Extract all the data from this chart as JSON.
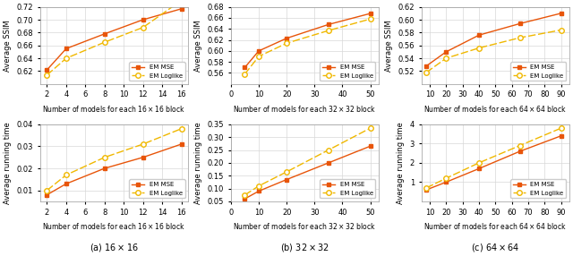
{
  "subplot_titles": [
    "(a) $16\\times 16$",
    "(b) $32\\times 32$",
    "(c) $64\\times 64$"
  ],
  "col1": {
    "ssim_x": [
      2,
      4,
      8,
      12,
      16
    ],
    "ssim_mse": [
      0.622,
      0.655,
      0.678,
      0.7,
      0.717
    ],
    "ssim_log": [
      0.614,
      0.64,
      0.665,
      0.688,
      0.73
    ],
    "ssim_ylim": [
      0.6,
      0.72
    ],
    "ssim_yticks": [
      0.62,
      0.64,
      0.66,
      0.68,
      0.7,
      0.72
    ],
    "ssim_xlabel": "Number of models for each $16\\times 16$ block",
    "ssim_xticks": [
      2,
      4,
      6,
      8,
      10,
      12,
      14,
      16
    ],
    "ssim_xlim": [
      1.3,
      16.7
    ],
    "time_x": [
      2,
      4,
      8,
      12,
      16
    ],
    "time_mse": [
      0.008,
      0.013,
      0.02,
      0.025,
      0.031
    ],
    "time_log": [
      0.01,
      0.017,
      0.025,
      0.031,
      0.038
    ],
    "time_ylim": [
      0.005,
      0.04
    ],
    "time_yticks": [
      0.01,
      0.02,
      0.03,
      0.04
    ],
    "time_xlabel": "Number of models for each $16\\times 16$ block",
    "time_xticks": [
      2,
      4,
      6,
      8,
      10,
      12,
      14,
      16
    ],
    "time_xlim": [
      1.3,
      16.7
    ]
  },
  "col2": {
    "ssim_x": [
      5,
      10,
      20,
      35,
      50
    ],
    "ssim_mse": [
      0.57,
      0.6,
      0.623,
      0.648,
      0.668
    ],
    "ssim_log": [
      0.558,
      0.59,
      0.614,
      0.637,
      0.658
    ],
    "ssim_ylim": [
      0.54,
      0.68
    ],
    "ssim_yticks": [
      0.56,
      0.58,
      0.6,
      0.62,
      0.64,
      0.66,
      0.68
    ],
    "ssim_xlabel": "Number of models for each $32\\times 32$ block",
    "ssim_xticks": [
      0,
      10,
      20,
      30,
      40,
      50
    ],
    "ssim_xlim": [
      0,
      53
    ],
    "time_x": [
      5,
      10,
      20,
      35,
      50
    ],
    "time_mse": [
      0.06,
      0.09,
      0.135,
      0.2,
      0.265
    ],
    "time_log": [
      0.075,
      0.11,
      0.165,
      0.25,
      0.335
    ],
    "time_ylim": [
      0.05,
      0.35
    ],
    "time_yticks": [
      0.05,
      0.1,
      0.15,
      0.2,
      0.25,
      0.3,
      0.35
    ],
    "time_xlabel": "Number of models for each $32\\times 32$ block",
    "time_xticks": [
      0,
      10,
      20,
      30,
      40,
      50
    ],
    "time_xlim": [
      0,
      53
    ]
  },
  "col3": {
    "ssim_x": [
      8,
      20,
      40,
      65,
      90
    ],
    "ssim_mse": [
      0.528,
      0.55,
      0.576,
      0.594,
      0.61
    ],
    "ssim_log": [
      0.518,
      0.54,
      0.556,
      0.572,
      0.584
    ],
    "ssim_ylim": [
      0.5,
      0.62
    ],
    "ssim_yticks": [
      0.52,
      0.54,
      0.56,
      0.58,
      0.6,
      0.62
    ],
    "ssim_xlabel": "Number of models for each $64\\times 64$ block",
    "ssim_xticks": [
      10,
      20,
      30,
      40,
      50,
      60,
      70,
      80,
      90
    ],
    "ssim_xlim": [
      5,
      95
    ],
    "time_x": [
      8,
      20,
      40,
      65,
      90
    ],
    "time_mse": [
      0.6,
      1.0,
      1.7,
      2.6,
      3.4
    ],
    "time_log": [
      0.7,
      1.2,
      2.0,
      2.9,
      3.8
    ],
    "time_ylim": [
      0,
      4
    ],
    "time_yticks": [
      1,
      2,
      3,
      4
    ],
    "time_xlabel": "Number of models for each $64\\times 64$ block",
    "time_xticks": [
      10,
      20,
      30,
      40,
      50,
      60,
      70,
      80,
      90
    ],
    "time_xlim": [
      5,
      95
    ]
  },
  "color_mse": "#e8550a",
  "color_log": "#f0b800",
  "ssim_ylabel": "Average SSIM",
  "time_ylabel": "Average running time",
  "legend_mse": "EM MSE",
  "legend_log": "EM Loglike"
}
